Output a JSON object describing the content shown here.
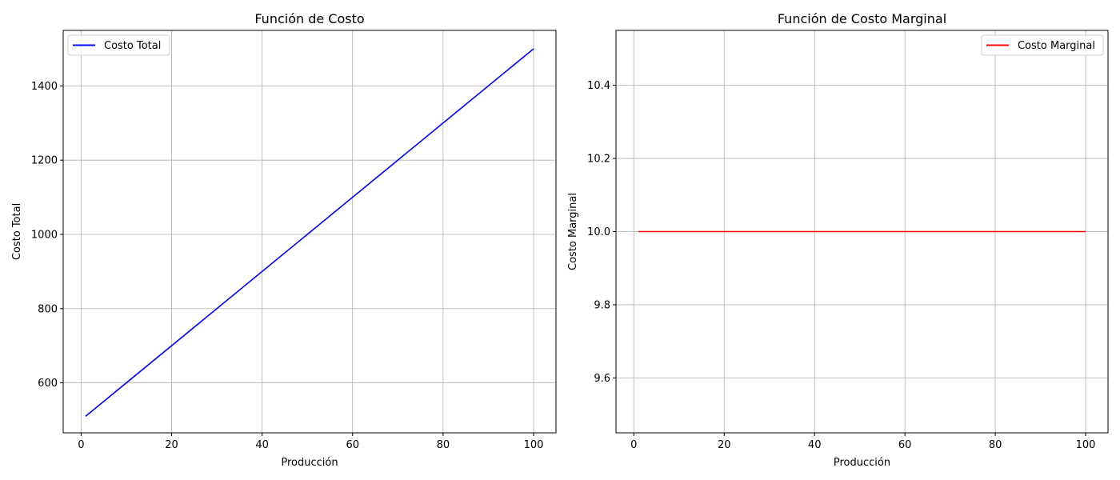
{
  "chart_data": [
    {
      "type": "line",
      "title": "Función de Costo",
      "xlabel": "Producción",
      "ylabel": "Costo Total",
      "xlim": [
        -3.95,
        104.95
      ],
      "ylim": [
        465.5,
        1549.5
      ],
      "xticks": [
        0,
        20,
        40,
        60,
        80,
        100
      ],
      "yticks": [
        600,
        800,
        1000,
        1200,
        1400
      ],
      "xtick_labels": [
        "0",
        "20",
        "40",
        "60",
        "80",
        "100"
      ],
      "ytick_labels": [
        "600",
        "800",
        "1000",
        "1200",
        "1400"
      ],
      "grid": true,
      "legend_position": "upper left",
      "series": [
        {
          "name": "Costo Total",
          "color": "#0000ff",
          "x": [
            1,
            100
          ],
          "y": [
            510,
            1500
          ]
        }
      ]
    },
    {
      "type": "line",
      "title": "Función de Costo Marginal",
      "xlabel": "Producción",
      "ylabel": "Costo Marginal",
      "xlim": [
        -3.95,
        104.95
      ],
      "ylim": [
        9.45,
        10.55
      ],
      "xticks": [
        0,
        20,
        40,
        60,
        80,
        100
      ],
      "yticks": [
        9.6,
        9.8,
        10.0,
        10.2,
        10.4
      ],
      "xtick_labels": [
        "0",
        "20",
        "40",
        "60",
        "80",
        "100"
      ],
      "ytick_labels": [
        "9.6",
        "9.8",
        "10.0",
        "10.2",
        "10.4"
      ],
      "grid": true,
      "legend_position": "upper right",
      "series": [
        {
          "name": "Costo Marginal",
          "color": "#ff0000",
          "x": [
            1,
            100
          ],
          "y": [
            10,
            10
          ]
        }
      ]
    }
  ]
}
